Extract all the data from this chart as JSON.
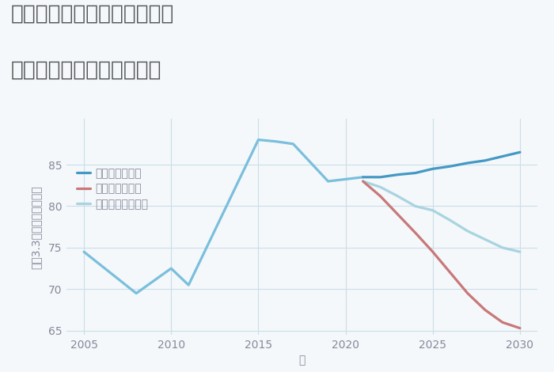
{
  "title_line1": "千葉県千葉市若葉区下泉町の",
  "title_line2": "中古マンションの価格推移",
  "xlabel": "年",
  "ylabel": "坪（3.3㎡）単価（万円）",
  "xlim": [
    2004,
    2031
  ],
  "ylim": [
    64.5,
    90.5
  ],
  "yticks": [
    65,
    70,
    75,
    80,
    85
  ],
  "xticks": [
    2005,
    2010,
    2015,
    2020,
    2025,
    2030
  ],
  "historical_years": [
    2005,
    2008,
    2010,
    2011,
    2015,
    2016,
    2017,
    2019,
    2021
  ],
  "historical_values": [
    74.5,
    69.5,
    72.5,
    70.5,
    88.0,
    87.8,
    87.5,
    83.0,
    83.5
  ],
  "good_years": [
    2021,
    2022,
    2023,
    2024,
    2025,
    2026,
    2027,
    2028,
    2029,
    2030
  ],
  "good_values": [
    83.5,
    83.5,
    83.8,
    84.0,
    84.5,
    84.8,
    85.2,
    85.5,
    86.0,
    86.5
  ],
  "bad_years": [
    2021,
    2022,
    2023,
    2024,
    2025,
    2026,
    2027,
    2028,
    2029,
    2030
  ],
  "bad_values": [
    83.0,
    81.2,
    79.0,
    76.8,
    74.5,
    72.0,
    69.5,
    67.5,
    66.0,
    65.3
  ],
  "normal_years": [
    2021,
    2022,
    2023,
    2024,
    2025,
    2026,
    2027,
    2028,
    2029,
    2030
  ],
  "normal_values": [
    83.0,
    82.3,
    81.2,
    80.0,
    79.5,
    78.3,
    77.0,
    76.0,
    75.0,
    74.5
  ],
  "color_historical": "#7abfdc",
  "color_good": "#4499c4",
  "color_bad": "#c87878",
  "color_normal": "#a8d4e0",
  "legend_good": "グッドシナリオ",
  "legend_bad": "バッドシナリオ",
  "legend_normal": "ノーマルシナリオ",
  "bg_color": "#f4f8fb",
  "grid_color": "#ccdde8",
  "title_color": "#555555",
  "axis_color": "#888899",
  "linewidth": 2.3,
  "title_fontsize": 19,
  "label_fontsize": 10,
  "tick_fontsize": 10,
  "legend_fontsize": 10
}
